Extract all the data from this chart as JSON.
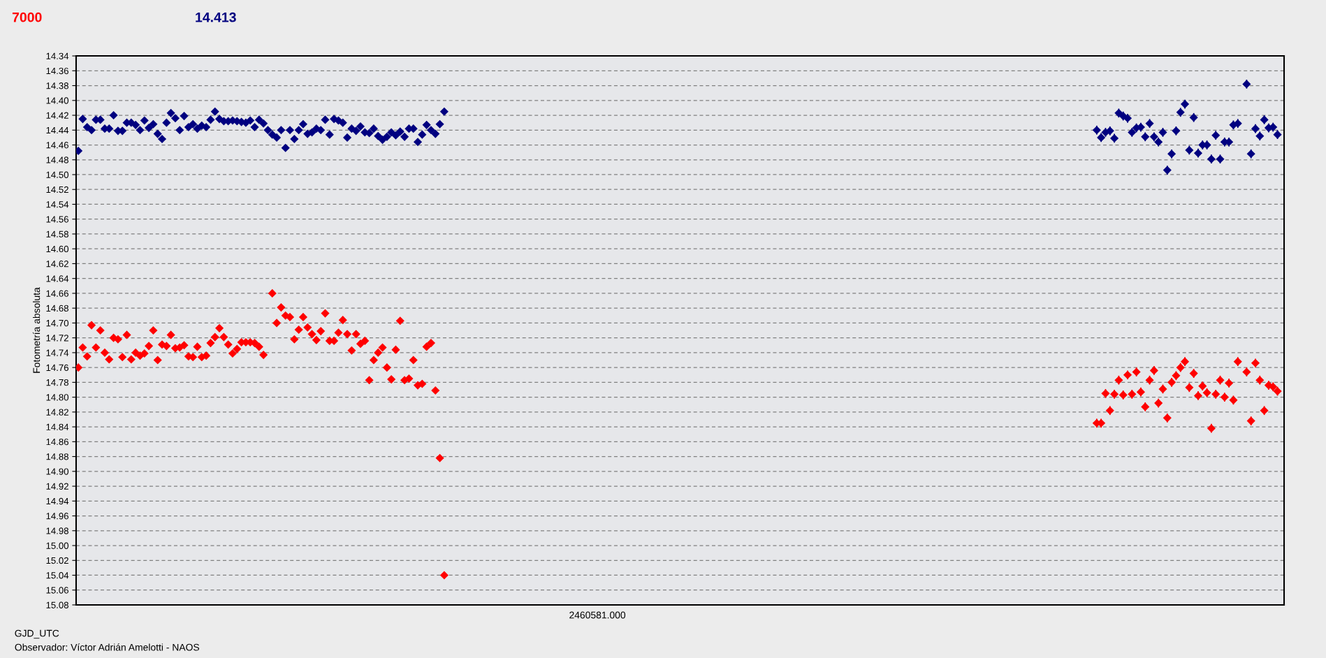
{
  "chart_data": {
    "type": "scatter",
    "annotations": [
      "7000",
      "14.413",
      "2460581.000",
      "Observador: Víctor Adrián Amelotti - NAOS"
    ],
    "xlabel": "GJD_UTC",
    "ylabel": "Fotometría absoluta",
    "categories": [
      null,
      null,
      null,
      null,
      null,
      null,
      null,
      null,
      null,
      null,
      null,
      null,
      null,
      null,
      null,
      null,
      null,
      null,
      null,
      null,
      null,
      null,
      null,
      null,
      null,
      null,
      null,
      null,
      null,
      null,
      null,
      null,
      null,
      null,
      null,
      null,
      null,
      null,
      null,
      null,
      null,
      null,
      null,
      null,
      null,
      null,
      null,
      null,
      null,
      null,
      null,
      null,
      null,
      null,
      null,
      null,
      null,
      null,
      null,
      null,
      null,
      null,
      null,
      null,
      null,
      null,
      null,
      null,
      null,
      null,
      null,
      null,
      null,
      null,
      null,
      null,
      null,
      null,
      null,
      null,
      null,
      null,
      null,
      null,
      null,
      null,
      null,
      null,
      null,
      null,
      null,
      null,
      null,
      null,
      null,
      null,
      null,
      null,
      null,
      null,
      null,
      null,
      null,
      null,
      null,
      null,
      null,
      null,
      null,
      null,
      null,
      null,
      null,
      null,
      null,
      null,
      null,
      null,
      null,
      null,
      null,
      null,
      null,
      null,
      null,
      null,
      null,
      null,
      null,
      null,
      null,
      null,
      null,
      null,
      null,
      null,
      null,
      null,
      null,
      null,
      null,
      null,
      null,
      null,
      null,
      null,
      null,
      null,
      null,
      null,
      null,
      null,
      null,
      null,
      null,
      null,
      null,
      null,
      null,
      null,
      null,
      null,
      null,
      null,
      null,
      null,
      null,
      null,
      null,
      null,
      null,
      null,
      null,
      null,
      null,
      null,
      null,
      null,
      null,
      null,
      null,
      null,
      null,
      null,
      null,
      null,
      null,
      null,
      null,
      null,
      null,
      null,
      null,
      null,
      null,
      null,
      null,
      null,
      null,
      null,
      null,
      null,
      null,
      null,
      null,
      null,
      null,
      null,
      null,
      null,
      null,
      null,
      null,
      null,
      null,
      null,
      null,
      null,
      null,
      null,
      null,
      null,
      null,
      null,
      null,
      null,
      null,
      null,
      null,
      null,
      null,
      null,
      null,
      null,
      null,
      null,
      null,
      null,
      null,
      null,
      null,
      null,
      null,
      null,
      null,
      null,
      null,
      null,
      null,
      null,
      null,
      null,
      null,
      null,
      null,
      null,
      null,
      null,
      null,
      null,
      null,
      null,
      null,
      null,
      null,
      null,
      null,
      null,
      null,
      null,
      null,
      null,
      null,
      null
    ],
    "series": [
      {
        "color": "#ff0000",
        "values": [
          14.76,
          14.733,
          14.745,
          14.703,
          14.733,
          14.71,
          14.74,
          14.749,
          14.72,
          14.722,
          14.746,
          14.716,
          14.749,
          14.74,
          14.744,
          14.741,
          14.731,
          14.71,
          14.75,
          14.729,
          14.731,
          14.716,
          14.734,
          14.733,
          14.73,
          14.745,
          14.746,
          14.732,
          14.746,
          14.744,
          14.727,
          14.719,
          14.707,
          14.719,
          14.729,
          14.741,
          14.735,
          14.726,
          14.726,
          14.726,
          14.727,
          14.732,
          14.743,
          null,
          14.66,
          14.7,
          14.679,
          14.69,
          14.692,
          14.722,
          14.709,
          14.692,
          14.706,
          14.715,
          14.723,
          14.711,
          14.687,
          14.724,
          14.724,
          14.713,
          14.696,
          14.715,
          14.737,
          14.715,
          14.728,
          14.724,
          14.777,
          14.75,
          14.74,
          14.733,
          14.76,
          14.776,
          14.736,
          14.697,
          14.777,
          14.775,
          14.75,
          14.784,
          14.782,
          14.732,
          14.727,
          14.791,
          14.882,
          15.04,
          null,
          null,
          null,
          null,
          null,
          null,
          null,
          null,
          null,
          null,
          null,
          null,
          null,
          null,
          null,
          null,
          null,
          null,
          null,
          null,
          null,
          null,
          null,
          null,
          null,
          null,
          null,
          null,
          null,
          null,
          null,
          null,
          null,
          null,
          null,
          null,
          null,
          null,
          null,
          null,
          null,
          null,
          null,
          null,
          null,
          null,
          null,
          null,
          null,
          null,
          null,
          null,
          null,
          null,
          null,
          null,
          null,
          null,
          null,
          null,
          null,
          null,
          null,
          null,
          null,
          null,
          null,
          null,
          null,
          null,
          null,
          null,
          null,
          null,
          null,
          null,
          null,
          null,
          null,
          null,
          null,
          null,
          null,
          null,
          null,
          null,
          null,
          null,
          null,
          null,
          null,
          null,
          null,
          null,
          null,
          null,
          null,
          null,
          null,
          null,
          null,
          null,
          null,
          null,
          null,
          null,
          null,
          null,
          null,
          null,
          null,
          null,
          null,
          null,
          null,
          null,
          null,
          null,
          null,
          null,
          null,
          null,
          null,
          null,
          null,
          null,
          null,
          null,
          null,
          null,
          null,
          null,
          null,
          null,
          null,
          null,
          null,
          null,
          null,
          null,
          null,
          null,
          null,
          null,
          null,
          null,
          null,
          14.835,
          14.835,
          14.795,
          14.818,
          14.796,
          14.777,
          14.797,
          14.77,
          14.796,
          14.766,
          14.793,
          14.813,
          14.777,
          14.764,
          14.808,
          14.789,
          14.828,
          14.78,
          14.771,
          14.76,
          14.752,
          14.787,
          14.768,
          14.798,
          14.785,
          14.794,
          14.842,
          14.796,
          14.777,
          14.8,
          14.781,
          14.804,
          14.752,
          null,
          14.766,
          14.832,
          14.754,
          14.777,
          14.818,
          14.784,
          14.786,
          14.792,
          null
        ],
        "errors": [
          0.004,
          0.004,
          0.004,
          0.004,
          0.004,
          0.004,
          0.004,
          0.004,
          0.004,
          0.004,
          0.004,
          0.004,
          0.004,
          0.004,
          0.004,
          0.004,
          0.004,
          0.004,
          0.004,
          0.004,
          0.004,
          0.004,
          0.004,
          0.004,
          0.004,
          0.004,
          0.004,
          0.004,
          0.004,
          0.004,
          0.004,
          0.004,
          0.004,
          0.004,
          0.004,
          0.004,
          0.004,
          0.004,
          0.004,
          0.004,
          0.004,
          0.004,
          0.004,
          null,
          0.004,
          0.004,
          0.004,
          0.004,
          0.004,
          0.004,
          0.004,
          0.004,
          0.004,
          0.004,
          0.004,
          0.004,
          0.004,
          0.004,
          0.004,
          0.004,
          0.004,
          0.004,
          0.004,
          0.004,
          0.004,
          0.004,
          0.004,
          0.004,
          0.004,
          0.004,
          0.004,
          0.004,
          0.004,
          0.004,
          0.004,
          0.004,
          0.004,
          0.004,
          0.004,
          0.004,
          0.004,
          0.004,
          0.004,
          0.004,
          null,
          null,
          null,
          null,
          null,
          null,
          null,
          null,
          null,
          null,
          null,
          null,
          null,
          null,
          null,
          null,
          null,
          null,
          null,
          null,
          null,
          null,
          null,
          null,
          null,
          null,
          null,
          null,
          null,
          null,
          null,
          null,
          null,
          null,
          null,
          null,
          null,
          null,
          null,
          null,
          null,
          null,
          null,
          null,
          null,
          null,
          null,
          null,
          null,
          null,
          null,
          null,
          null,
          null,
          null,
          null,
          null,
          null,
          null,
          null,
          null,
          null,
          null,
          null,
          null,
          null,
          null,
          null,
          null,
          null,
          null,
          null,
          null,
          null,
          null,
          null,
          null,
          null,
          null,
          null,
          null,
          null,
          null,
          null,
          null,
          null,
          null,
          null,
          null,
          null,
          null,
          null,
          null,
          null,
          null,
          null,
          null,
          null,
          null,
          null,
          null,
          null,
          null,
          null,
          null,
          null,
          null,
          null,
          null,
          null,
          null,
          null,
          null,
          null,
          null,
          null,
          null,
          null,
          null,
          null,
          null,
          null,
          null,
          null,
          null,
          null,
          null,
          null,
          null,
          null,
          null,
          null,
          null,
          null,
          null,
          null,
          null,
          null,
          null,
          null,
          null,
          null,
          null,
          null,
          null,
          null,
          null,
          0.006,
          0.006,
          0.006,
          0.006,
          0.006,
          0.006,
          0.006,
          0.006,
          0.006,
          0.006,
          0.006,
          0.006,
          0.006,
          0.006,
          0.006,
          0.006,
          0.006,
          0.006,
          0.006,
          0.006,
          0.006,
          0.006,
          0.006,
          0.006,
          0.006,
          0.006,
          0.006,
          0.006,
          0.006,
          0.006,
          0.006,
          0.006,
          0.006,
          null,
          0.006,
          0.006,
          0.006,
          0.006,
          0.006,
          0.006,
          0.006,
          0.006,
          null
        ]
      },
      {
        "color": "#000080",
        "values": [
          14.468,
          14.425,
          14.436,
          14.44,
          14.426,
          14.426,
          14.438,
          14.438,
          14.42,
          14.441,
          14.441,
          14.43,
          14.43,
          14.433,
          14.44,
          14.427,
          14.437,
          14.432,
          14.445,
          14.452,
          14.43,
          14.417,
          14.424,
          14.44,
          14.421,
          14.436,
          14.432,
          14.438,
          14.434,
          14.436,
          14.426,
          14.415,
          14.425,
          14.428,
          14.428,
          14.427,
          14.428,
          14.429,
          14.43,
          14.427,
          14.436,
          14.426,
          14.431,
          14.44,
          14.446,
          14.45,
          14.44,
          14.464,
          14.44,
          14.452,
          14.44,
          14.432,
          14.445,
          14.443,
          14.438,
          14.44,
          14.426,
          14.446,
          14.425,
          14.427,
          14.43,
          14.45,
          14.438,
          14.441,
          14.435,
          14.443,
          14.444,
          14.438,
          14.448,
          14.453,
          14.449,
          14.443,
          14.447,
          14.442,
          14.449,
          14.438,
          14.438,
          14.456,
          14.446,
          14.433,
          14.44,
          14.445,
          14.432,
          14.415,
          null,
          null,
          null,
          null,
          null,
          null,
          null,
          null,
          null,
          null,
          null,
          null,
          null,
          null,
          null,
          null,
          null,
          null,
          null,
          null,
          null,
          null,
          null,
          null,
          null,
          null,
          null,
          null,
          null,
          null,
          null,
          null,
          null,
          null,
          null,
          null,
          null,
          null,
          null,
          null,
          null,
          null,
          null,
          null,
          null,
          null,
          null,
          null,
          null,
          null,
          null,
          null,
          null,
          null,
          null,
          null,
          null,
          null,
          null,
          null,
          null,
          null,
          null,
          null,
          null,
          null,
          null,
          null,
          null,
          null,
          null,
          null,
          null,
          null,
          null,
          null,
          null,
          null,
          null,
          null,
          null,
          null,
          null,
          null,
          null,
          null,
          null,
          null,
          null,
          null,
          null,
          null,
          null,
          null,
          null,
          null,
          null,
          null,
          null,
          null,
          null,
          null,
          null,
          null,
          null,
          null,
          null,
          null,
          null,
          null,
          null,
          null,
          null,
          null,
          null,
          null,
          null,
          null,
          null,
          null,
          null,
          null,
          null,
          null,
          null,
          null,
          null,
          null,
          null,
          null,
          null,
          null,
          null,
          null,
          null,
          null,
          null,
          null,
          null,
          null,
          null,
          null,
          null,
          null,
          null,
          null,
          null,
          14.44,
          14.45,
          14.443,
          14.441,
          14.451,
          14.417,
          14.421,
          14.424,
          14.443,
          14.437,
          14.436,
          14.449,
          14.431,
          14.449,
          14.456,
          14.443,
          14.494,
          14.472,
          14.441,
          14.416,
          14.405,
          14.467,
          14.423,
          14.471,
          14.46,
          14.46,
          14.479,
          14.447,
          14.479,
          14.456,
          14.456,
          14.433,
          14.431,
          null,
          14.378,
          14.472,
          14.438,
          14.448,
          14.426,
          14.437,
          14.436,
          14.446,
          null
        ],
        "errors": [
          0.004,
          0.004,
          0.004,
          0.004,
          0.004,
          0.004,
          0.004,
          0.004,
          0.004,
          0.004,
          0.004,
          0.004,
          0.004,
          0.004,
          0.004,
          0.004,
          0.004,
          0.004,
          0.004,
          0.004,
          0.004,
          0.004,
          0.004,
          0.004,
          0.004,
          0.004,
          0.004,
          0.004,
          0.004,
          0.004,
          0.004,
          0.004,
          0.004,
          0.004,
          0.004,
          0.004,
          0.004,
          0.004,
          0.004,
          0.004,
          0.004,
          0.004,
          0.004,
          0.004,
          0.004,
          0.004,
          0.004,
          0.004,
          0.004,
          0.004,
          0.004,
          0.004,
          0.004,
          0.004,
          0.004,
          0.004,
          0.004,
          0.004,
          0.004,
          0.004,
          0.004,
          0.004,
          0.004,
          0.004,
          0.004,
          0.004,
          0.004,
          0.004,
          0.004,
          0.004,
          0.004,
          0.004,
          0.004,
          0.004,
          0.004,
          0.004,
          0.004,
          0.004,
          0.004,
          0.004,
          0.004,
          0.004,
          0.004,
          0.004,
          null,
          null,
          null,
          null,
          null,
          null,
          null,
          null,
          null,
          null,
          null,
          null,
          null,
          null,
          null,
          null,
          null,
          null,
          null,
          null,
          null,
          null,
          null,
          null,
          null,
          null,
          null,
          null,
          null,
          null,
          null,
          null,
          null,
          null,
          null,
          null,
          null,
          null,
          null,
          null,
          null,
          null,
          null,
          null,
          null,
          null,
          null,
          null,
          null,
          null,
          null,
          null,
          null,
          null,
          null,
          null,
          null,
          null,
          null,
          null,
          null,
          null,
          null,
          null,
          null,
          null,
          null,
          null,
          null,
          null,
          null,
          null,
          null,
          null,
          null,
          null,
          null,
          null,
          null,
          null,
          null,
          null,
          null,
          null,
          null,
          null,
          null,
          null,
          null,
          null,
          null,
          null,
          null,
          null,
          null,
          null,
          null,
          null,
          null,
          null,
          null,
          null,
          null,
          null,
          null,
          null,
          null,
          null,
          null,
          null,
          null,
          null,
          null,
          null,
          null,
          null,
          null,
          null,
          null,
          null,
          null,
          null,
          null,
          null,
          null,
          null,
          null,
          null,
          null,
          null,
          null,
          null,
          null,
          null,
          null,
          null,
          null,
          null,
          null,
          null,
          null,
          null,
          null,
          null,
          null,
          null,
          null,
          0.006,
          0.006,
          0.006,
          0.006,
          0.006,
          0.006,
          0.006,
          0.006,
          0.006,
          0.006,
          0.006,
          0.006,
          0.006,
          0.006,
          0.006,
          0.006,
          0.006,
          0.006,
          0.006,
          0.006,
          0.006,
          0.006,
          0.006,
          0.006,
          0.006,
          0.006,
          0.006,
          0.006,
          0.006,
          0.006,
          0.006,
          0.006,
          0.006,
          null,
          0.006,
          0.006,
          0.006,
          0.006,
          0.006,
          0.006,
          0.006,
          0.006,
          null
        ]
      }
    ],
    "ylim": [
      15.08,
      14.34
    ],
    "yticks": [
      {
        "value": 14.34,
        "label": "14.34"
      },
      {
        "value": 14.36,
        "label": "14.36"
      },
      {
        "value": 14.38,
        "label": "14.38"
      },
      {
        "value": 14.4,
        "label": "14.40"
      },
      {
        "value": 14.42,
        "label": "14.42"
      },
      {
        "value": 14.44,
        "label": "14.44"
      },
      {
        "value": 14.46,
        "label": "14.46"
      },
      {
        "value": 14.48,
        "label": "14.48"
      },
      {
        "value": 14.5,
        "label": "14.50"
      },
      {
        "value": 14.52,
        "label": "14.52"
      },
      {
        "value": 14.54,
        "label": "14.54"
      },
      {
        "value": 14.56,
        "label": "14.56"
      },
      {
        "value": 14.58,
        "label": "14.58"
      },
      {
        "value": 14.6,
        "label": "14.60"
      },
      {
        "value": 14.62,
        "label": "14.62"
      },
      {
        "value": 14.64,
        "label": "14.64"
      },
      {
        "value": 14.66,
        "label": "14.66"
      },
      {
        "value": 14.68,
        "label": "14.68"
      },
      {
        "value": 14.7,
        "label": "14.70"
      },
      {
        "value": 14.72,
        "label": "14.72"
      },
      {
        "value": 14.74,
        "label": "14.74"
      },
      {
        "value": 14.76,
        "label": "14.76"
      },
      {
        "value": 14.78,
        "label": "14.78"
      },
      {
        "value": 14.8,
        "label": "14.80"
      },
      {
        "value": 14.82,
        "label": "14.82"
      },
      {
        "value": 14.84,
        "label": "14.84"
      },
      {
        "value": 14.86,
        "label": "14.86"
      },
      {
        "value": 14.88,
        "label": "14.88"
      },
      {
        "value": 14.9,
        "label": "14.90"
      },
      {
        "value": 14.92,
        "label": "14.92"
      },
      {
        "value": 14.94,
        "label": "14.94"
      },
      {
        "value": 14.96,
        "label": "14.96"
      },
      {
        "value": 14.98,
        "label": "14.98"
      },
      {
        "value": 15.0,
        "label": "15.00"
      },
      {
        "value": 15.02,
        "label": "15.02"
      },
      {
        "value": 15.04,
        "label": "15.04"
      },
      {
        "value": 15.06,
        "label": "15.06"
      },
      {
        "value": 15.08,
        "label": "15.08"
      }
    ],
    "grid": "y",
    "marker": "diamond"
  }
}
